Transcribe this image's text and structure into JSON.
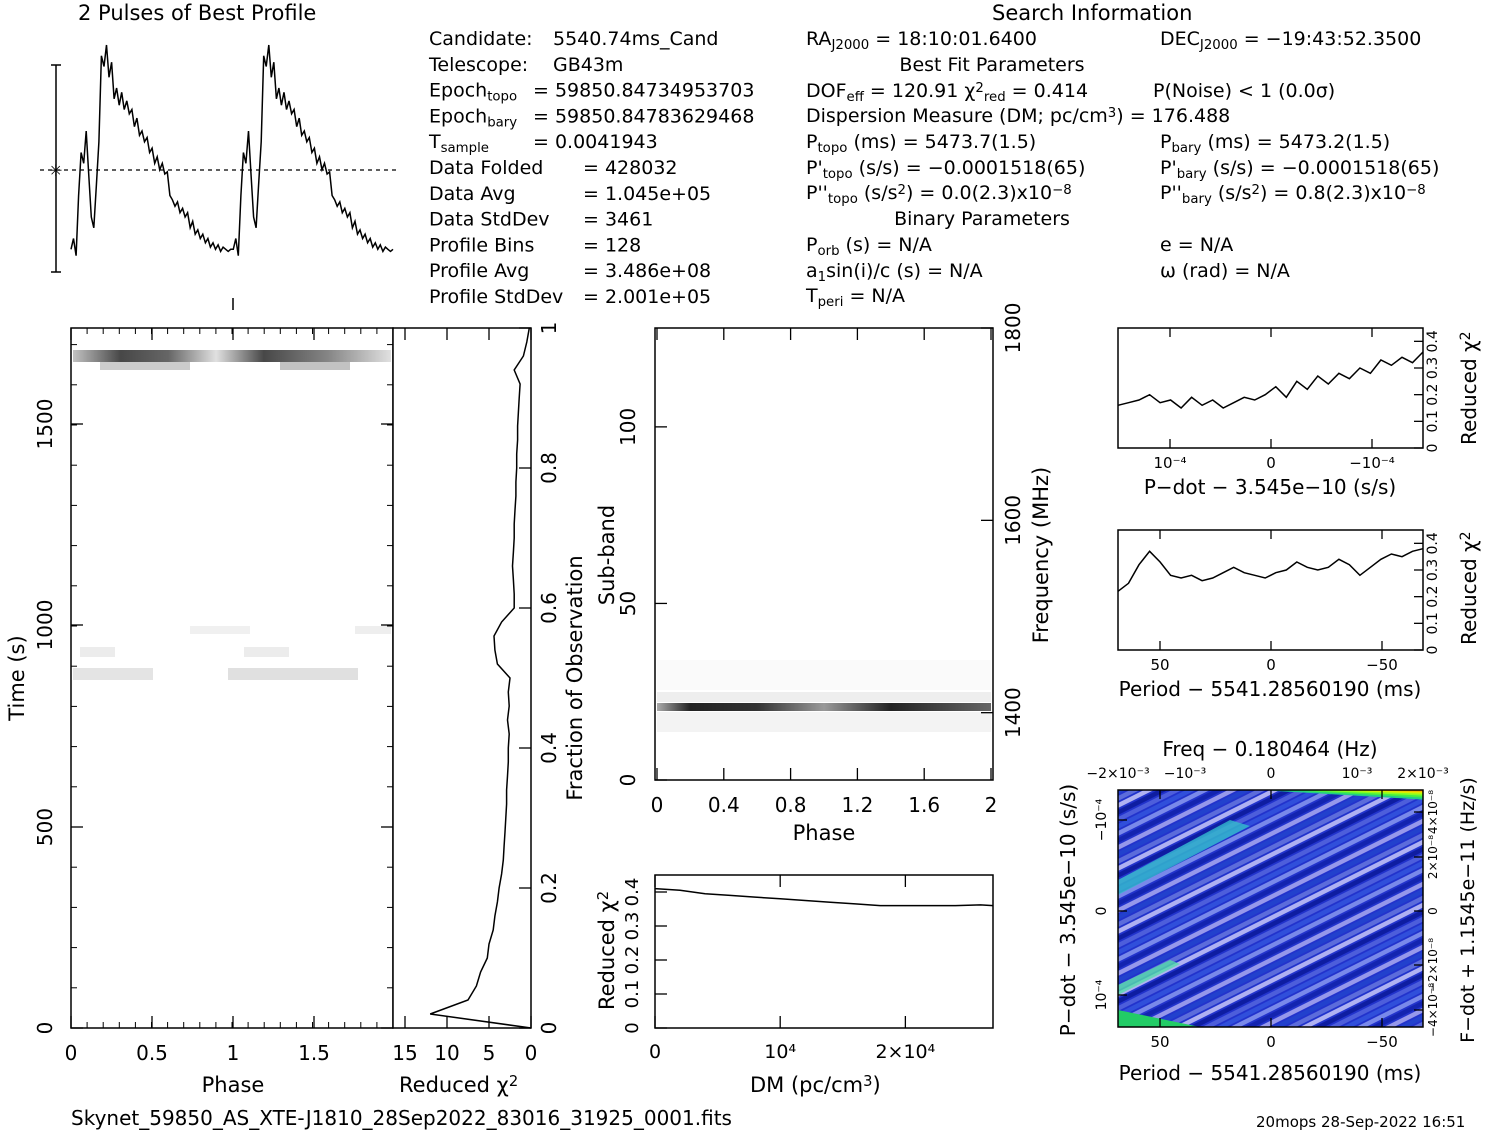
{
  "prof_title": "2 Pulses of Best Profile",
  "search_title": "Search Information",
  "footer_file": "Skynet_59850_AS_XTE-J1810_28Sep2022_83016_31925_0001.fits",
  "footer_stamp": "20mops 28-Sep-2022 16:51",
  "info_left": [
    {
      "k": "Candidate:",
      "v": "5540.74ms_Cand"
    },
    {
      "k": "Telescope:",
      "v": "GB43m"
    },
    {
      "k": "Epoch",
      "sub": "topo",
      "v": "= 59850.84734953703"
    },
    {
      "k": "Epoch",
      "sub": "bary",
      "v": "= 59850.84783629468"
    },
    {
      "k": "T",
      "sub": "sample",
      "v": "=  0.0041943"
    },
    {
      "k": "Data Folded",
      "v": "=  428032"
    },
    {
      "k": "Data Avg",
      "v": "=  1.045e+05"
    },
    {
      "k": "Data StdDev",
      "v": "=  3461"
    },
    {
      "k": "Profile Bins",
      "v": "=  128"
    },
    {
      "k": "Profile Avg",
      "v": "=  3.486e+08"
    },
    {
      "k": "Profile StdDev",
      "v": "=  2.001e+05"
    }
  ],
  "info_mid": {
    "ra": {
      "k": "RA",
      "sub": "J2000",
      "v": "= 18:10:01.6400"
    },
    "dec": {
      "k": "DEC",
      "sub": "J2000",
      "v": "= −19:43:52.3500"
    },
    "best_fit_header": "Best Fit Parameters",
    "dof": {
      "k": "DOF",
      "sub": "eff",
      "v": "= 120.91"
    },
    "chi": {
      "k": "χ",
      "sub": "red",
      "sup": "2",
      "v": "= 0.414"
    },
    "pnoise": "P(Noise) < 1   (0.0σ)",
    "dm": "Dispersion Measure (DM; pc/cm",
    "dm_sup": "3",
    "dm_val": ") = 176.488",
    "ptopo": {
      "k": "P",
      "sub": "topo",
      "v": "(ms) =  5473.7(1.5)"
    },
    "pbary": {
      "k": "P",
      "sub": "bary",
      "v": "(ms) =  5473.2(1.5)"
    },
    "pdtopo": {
      "k": "P'",
      "sub": "topo",
      "v": "(s/s) = −0.0001518(65)"
    },
    "pdbary": {
      "k": "P'",
      "sub": "bary",
      "v": "(s/s) = −0.0001518(65)"
    },
    "pddtopo": {
      "k": "P''",
      "sub": "topo",
      "v": "(s/s",
      "sup": "2",
      "v2": ") = 0.0(2.3)x10",
      "sup2": "−8"
    },
    "pddbary": {
      "k": "P''",
      "sub": "bary",
      "v": "(s/s",
      "sup": "2",
      "v2": ") =  0.8(2.3)x10",
      "sup2": "−8"
    },
    "binary_header": "Binary Parameters",
    "porb": {
      "k": "P",
      "sub": "orb",
      "v": "(s) = N/A"
    },
    "ecc": "e = N/A",
    "a1": {
      "k": "a",
      "sub": "1",
      "v": "sin(i)/c (s) = N/A"
    },
    "omega": "ω (rad) = N/A",
    "tperi": {
      "k": "T",
      "sub": "peri",
      "v": "= N/A"
    }
  },
  "labels": {
    "phase": "Phase",
    "time": "Time (s)",
    "redchi": "Reduced χ",
    "redchi_sup": "2",
    "frac": "Fraction of Observation",
    "subband": "Sub-band",
    "freq": "Frequency (MHz)",
    "dm_axis": "DM (pc/cm",
    "dm_axis_sup": "3",
    "dm_axis_close": ")",
    "pdot_axis": "P−dot − 3.545e−10 (s/s)",
    "period_axis": "Period − 5541.28560190 (ms)",
    "freq_top": "Freq − 0.180464 (Hz)",
    "fdot_axis": "F−dot + 1.1545e−11 (Hz/s)"
  },
  "ticks": {
    "phase": [
      "0",
      "0.5",
      "1",
      "1.5"
    ],
    "time": [
      "0",
      "500",
      "1000",
      "1500"
    ],
    "chi_x": [
      "15",
      "10",
      "5",
      "0"
    ],
    "frac": [
      "0",
      "0.2",
      "0.4",
      "0.6",
      "0.8",
      "1"
    ],
    "subband": [
      "0",
      "50",
      "100"
    ],
    "phase2": [
      "0",
      "0.4",
      "0.8",
      "1.2",
      "1.6",
      "2"
    ],
    "freq": [
      "1400",
      "1600",
      "1800"
    ],
    "dm_chi_y": [
      "0",
      "0.1",
      "0.2",
      "0.3",
      "0.4"
    ],
    "dm_x": [
      "0",
      "10⁴",
      "2×10⁴"
    ],
    "pd_x": [
      "10⁻⁴",
      "0",
      "−10⁻⁴"
    ],
    "per_x": [
      "50",
      "0",
      "−50"
    ],
    "freq_x": [
      "−2×10⁻³",
      "−10⁻³",
      "0",
      "10⁻³",
      "2×10⁻³"
    ],
    "pd_y": [
      "10⁻⁴",
      "0",
      "−10⁻⁴"
    ],
    "fdot_y": [
      "−4×10⁻⁸",
      "−2×10⁻⁸",
      "0",
      "2×10⁻⁸",
      "4×10⁻⁸"
    ],
    "small_chi": [
      "0",
      "0.1",
      "0.2",
      "0.3",
      "0.4"
    ]
  },
  "chart_data": [
    {
      "type": "line",
      "title": "2 Pulses of Best Profile",
      "xlabel": "Phase",
      "xlim": [
        0,
        2
      ],
      "profile_1pulse": [
        0.05,
        0.1,
        0.02,
        0.3,
        0.5,
        0.45,
        0.6,
        0.4,
        0.2,
        0.15,
        0.35,
        0.55,
        0.95,
        0.9,
        1.0,
        0.85,
        0.92,
        0.75,
        0.8,
        0.72,
        0.78,
        0.7,
        0.74,
        0.68,
        0.7,
        0.62,
        0.66,
        0.58,
        0.6,
        0.55,
        0.57,
        0.5,
        0.52,
        0.45,
        0.48,
        0.42,
        0.45,
        0.4,
        0.41,
        0.3,
        0.28,
        0.25,
        0.27,
        0.22,
        0.24,
        0.2,
        0.22,
        0.15,
        0.18,
        0.12,
        0.14,
        0.1,
        0.12,
        0.08,
        0.1,
        0.06,
        0.08,
        0.05,
        0.07,
        0.04,
        0.06,
        0.05,
        0.04,
        0.05
      ]
    },
    {
      "type": "heatmap",
      "ylabel": "Time (s)",
      "xlabel": "Phase",
      "ylim": [
        0,
        1750
      ],
      "xlim": [
        0,
        2
      ]
    },
    {
      "type": "line",
      "xlabel": "Reduced χ²",
      "ylabel": "Fraction of Observation",
      "xlim": [
        15,
        0
      ],
      "ylim": [
        0,
        1
      ],
      "frac": [
        0.02,
        0.04,
        0.06,
        0.08,
        0.1,
        0.12,
        0.14,
        0.16,
        0.18,
        0.2,
        0.22,
        0.24,
        0.26,
        0.28,
        0.3,
        0.32,
        0.34,
        0.36,
        0.38,
        0.4,
        0.42,
        0.44,
        0.46,
        0.48,
        0.5,
        0.52,
        0.54,
        0.56,
        0.58,
        0.6,
        0.62,
        0.64,
        0.66,
        0.68,
        0.7,
        0.72,
        0.74,
        0.76,
        0.78,
        0.8,
        0.82,
        0.84,
        0.86,
        0.88,
        0.9,
        0.92,
        0.94,
        0.96,
        0.98,
        1.0
      ],
      "chi": [
        12,
        7.5,
        6.5,
        6,
        5.2,
        5,
        4.5,
        4.3,
        4,
        3.8,
        3.5,
        3.3,
        3.2,
        3.1,
        3,
        2.9,
        2.9,
        2.8,
        2.7,
        2.7,
        2.6,
        2.8,
        2.6,
        2.7,
        2.5,
        4,
        4.3,
        4.4,
        3.5,
        2,
        2,
        2.1,
        2.2,
        2.1,
        2,
        2,
        1.9,
        1.8,
        1.8,
        1.7,
        1.7,
        1.6,
        1.6,
        1.5,
        1.4,
        1.3,
        2,
        0.9,
        0.5,
        0.2
      ]
    },
    {
      "type": "heatmap",
      "ylabel": "Sub-band",
      "xlabel": "Phase",
      "ylim": [
        0,
        128
      ],
      "xlim": [
        0,
        2
      ],
      "y2label": "Frequency (MHz)",
      "y2lim": [
        1330,
        1800
      ]
    },
    {
      "type": "line",
      "xlabel": "DM (pc/cm³)",
      "ylabel": "Reduced χ²",
      "xlim": [
        0,
        27000
      ],
      "ylim": [
        0,
        0.45
      ],
      "x": [
        0,
        2000,
        4000,
        6000,
        8000,
        10000,
        12000,
        14000,
        16000,
        18000,
        20000,
        22000,
        24000,
        26000,
        27000
      ],
      "y": [
        0.41,
        0.405,
        0.395,
        0.39,
        0.385,
        0.38,
        0.375,
        0.37,
        0.365,
        0.36,
        0.36,
        0.36,
        0.36,
        0.362,
        0.36
      ]
    },
    {
      "type": "line",
      "xlabel": "P−dot − 3.545e−10 (s/s)",
      "ylabel": "Reduced χ²",
      "ylim": [
        0,
        0.45
      ],
      "y": [
        0.16,
        0.17,
        0.18,
        0.2,
        0.17,
        0.18,
        0.15,
        0.19,
        0.16,
        0.18,
        0.15,
        0.17,
        0.19,
        0.18,
        0.2,
        0.23,
        0.19,
        0.25,
        0.22,
        0.27,
        0.24,
        0.28,
        0.26,
        0.3,
        0.28,
        0.33,
        0.31,
        0.34,
        0.32,
        0.36
      ]
    },
    {
      "type": "line",
      "xlabel": "Period − 5541.28560190 (ms)",
      "ylabel": "Reduced χ²",
      "ylim": [
        0,
        0.45
      ],
      "y": [
        0.22,
        0.25,
        0.32,
        0.37,
        0.33,
        0.28,
        0.27,
        0.28,
        0.26,
        0.27,
        0.29,
        0.31,
        0.29,
        0.28,
        0.27,
        0.29,
        0.3,
        0.33,
        0.31,
        0.3,
        0.31,
        0.34,
        0.32,
        0.28,
        0.31,
        0.34,
        0.36,
        0.35,
        0.37,
        0.38
      ]
    },
    {
      "type": "heatmap",
      "xlabel": "Period − 5541.28560190 (ms)",
      "ylabel": "P−dot − 3.545e−10 (s/s)",
      "x2label": "Freq − 0.180464 (Hz)",
      "y2label": "F−dot + 1.1545e−11 (Hz/s)"
    }
  ]
}
